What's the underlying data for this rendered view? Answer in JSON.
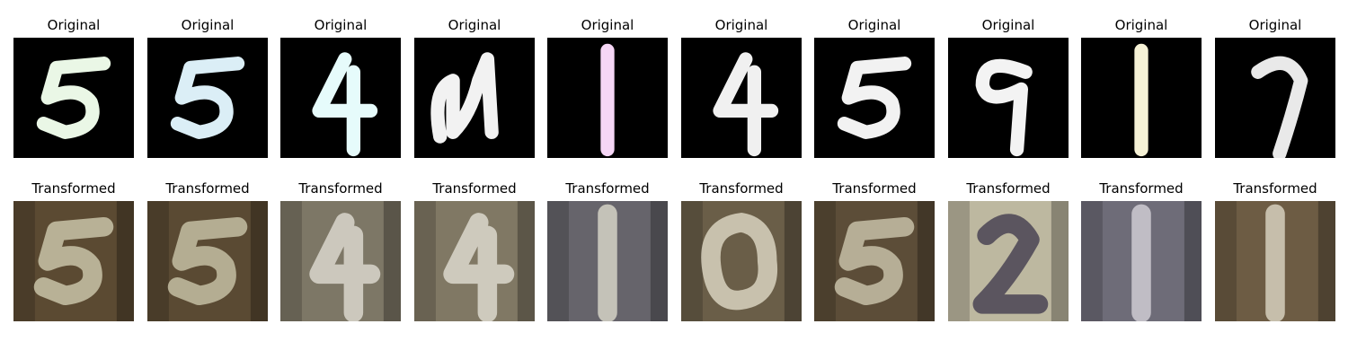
{
  "rows": [
    {
      "row_title": "Original",
      "tiles": [
        {
          "digit": "5",
          "background": "#000000",
          "stroke": "#eaf7e6"
        },
        {
          "digit": "5",
          "background": "#000000",
          "stroke": "#dbeef6"
        },
        {
          "digit": "4",
          "background": "#000000",
          "stroke": "#e6fbfb"
        },
        {
          "digit": "u",
          "background": "#000000",
          "stroke": "#f2f2f2"
        },
        {
          "digit": "1",
          "background": "#000000",
          "stroke": "#f6d6f6"
        },
        {
          "digit": "4",
          "background": "#000000",
          "stroke": "#f0f0f0"
        },
        {
          "digit": "5",
          "background": "#000000",
          "stroke": "#f2f2f2"
        },
        {
          "digit": "9",
          "background": "#000000",
          "stroke": "#f3f3f3"
        },
        {
          "digit": "1",
          "background": "#000000",
          "stroke": "#f6f2d6"
        },
        {
          "digit": "7",
          "background": "#000000",
          "stroke": "#e9e9e9"
        }
      ]
    },
    {
      "row_title": "Transformed",
      "tiles": [
        {
          "digit": "5",
          "background": "#5b4a32",
          "stroke": "#c9c3a8"
        },
        {
          "digit": "5",
          "background": "#5a4a33",
          "stroke": "#c4bea3"
        },
        {
          "digit": "4",
          "background": "#7d7766",
          "stroke": "#d9d6cc"
        },
        {
          "digit": "4",
          "background": "#807864",
          "stroke": "#dcd8cc"
        },
        {
          "digit": "1",
          "background": "#66646b",
          "stroke": "#d5d2c6"
        },
        {
          "digit": "0",
          "background": "#6a5e48",
          "stroke": "#d8d2c0"
        },
        {
          "digit": "5",
          "background": "#5c4d38",
          "stroke": "#c6bfa7"
        },
        {
          "digit": "2",
          "background": "#bdb8a0",
          "stroke": "#4a4354"
        },
        {
          "digit": "1",
          "background": "#6e6c78",
          "stroke": "#cfcbd2"
        },
        {
          "digit": "1",
          "background": "#6d5c44",
          "stroke": "#d6cfbd"
        }
      ]
    }
  ]
}
